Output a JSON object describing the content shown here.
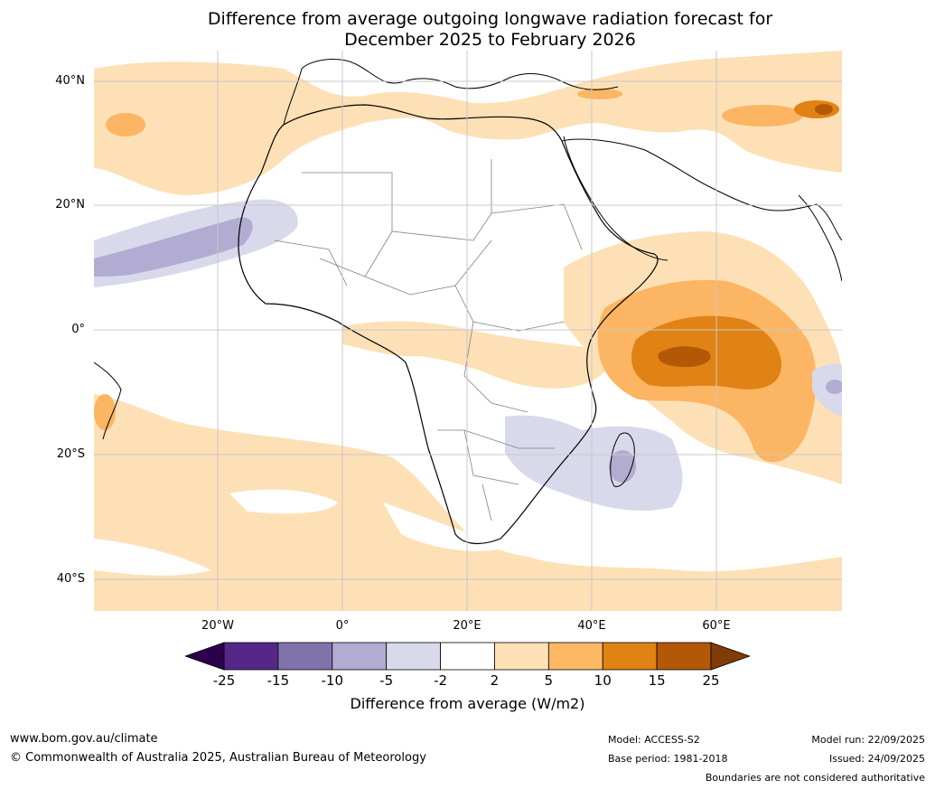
{
  "title": {
    "line1": "Difference from average outgoing longwave radiation forecast for",
    "line2": "December 2025 to February 2026"
  },
  "map": {
    "region": "Africa and surrounding oceans",
    "lat_labels": [
      "40°N",
      "20°N",
      "0°",
      "20°S",
      "40°S"
    ],
    "lon_labels": [
      "20°W",
      "0°",
      "20°E",
      "40°E",
      "60°E"
    ],
    "colors": {
      "ocean": "#ffffff",
      "pos_2_5": "#fde0b6",
      "pos_5_10": "#fbb563",
      "pos_10_15": "#e08214",
      "pos_15_25": "#b35806",
      "neg_2_5": "#d8daeb",
      "neg_5_10": "#b2abd2",
      "coast": "#000000",
      "border": "#808080",
      "grid": "#c8c8c8"
    }
  },
  "legend": {
    "ticks": [
      "-25",
      "-15",
      "-10",
      "-5",
      "-2",
      "2",
      "5",
      "10",
      "15",
      "25"
    ],
    "colors": [
      "#2d004b",
      "#542788",
      "#8073ac",
      "#b2abd2",
      "#d8daeb",
      "#ffffff",
      "#fee0b6",
      "#fdb863",
      "#e08214",
      "#b35806",
      "#7f3b08"
    ],
    "label": "Difference from average (W/m2)"
  },
  "footer": {
    "website": "www.bom.gov.au/climate",
    "copyright": "© Commonwealth of Australia 2025, Australian Bureau of Meteorology",
    "model": "Model: ACCESS-S2",
    "base_period": "Base period: 1981-2018",
    "model_run": "Model run: 22/09/2025",
    "issued": "Issued: 24/09/2025",
    "disclaimer": "Boundaries are not considered authoritative"
  }
}
